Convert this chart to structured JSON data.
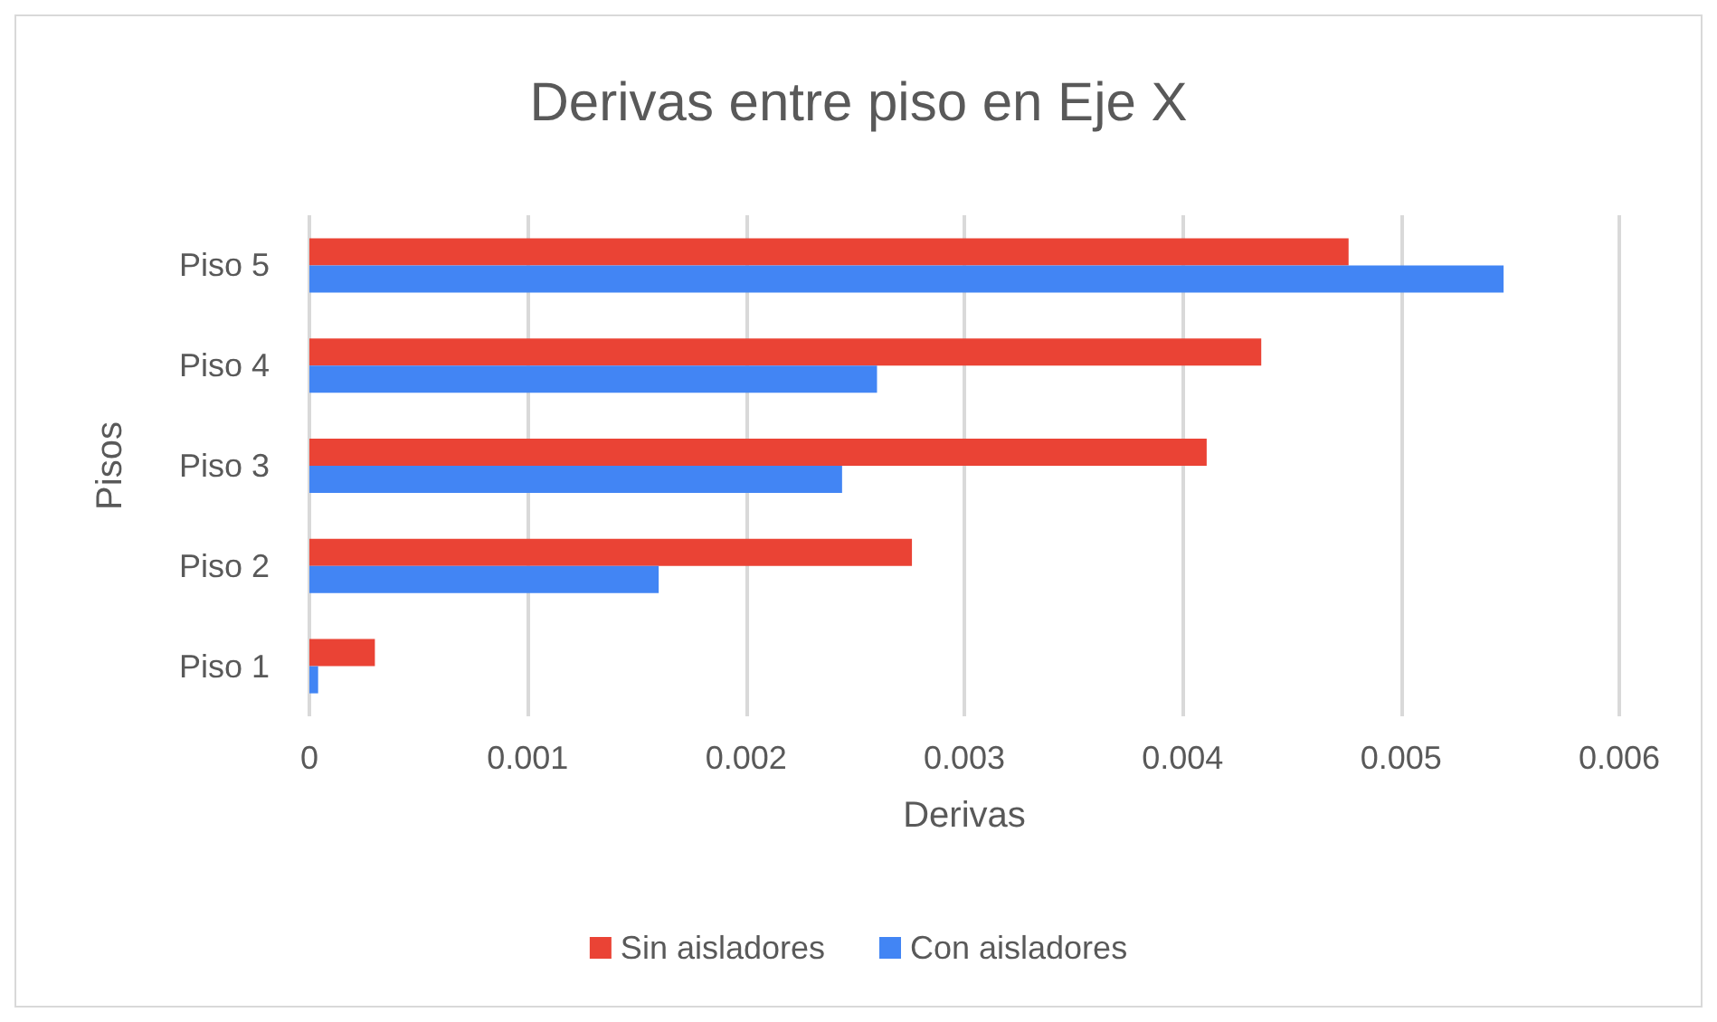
{
  "chart_data": {
    "type": "bar",
    "orientation": "horizontal",
    "title": "Derivas entre piso en Eje X",
    "xlabel": "Derivas",
    "ylabel": "Pisos",
    "categories": [
      "Piso 5",
      "Piso 4",
      "Piso 3",
      "Piso 2",
      "Piso 1"
    ],
    "series": [
      {
        "name": "Sin aisladores",
        "color": "#ea4335",
        "values": [
          0.00476,
          0.00436,
          0.00411,
          0.00276,
          0.0003
        ]
      },
      {
        "name": "Con aisladores",
        "color": "#4285f4",
        "values": [
          0.00547,
          0.0026,
          0.00244,
          0.0016,
          4e-05
        ]
      }
    ],
    "xlim": [
      0,
      0.006
    ],
    "xticks": [
      0,
      0.001,
      0.002,
      0.003,
      0.004,
      0.005,
      0.006
    ],
    "grid": "x",
    "legend": "bottom"
  }
}
